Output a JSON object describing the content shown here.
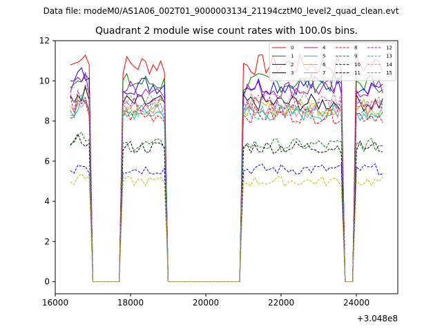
{
  "suptitle": "Data file: modeM0/AS1A06_002T01_9000003134_21194cztM0_level2_quad_clean.evt",
  "chart_data": {
    "type": "line",
    "title": "Quadrant 2 module wise count rates with 100.0s bins.",
    "xlabel": "",
    "ylabel": "",
    "x_offset_label": "+3.048e8",
    "xlim": [
      16000,
      25100
    ],
    "ylim": [
      -0.6,
      12
    ],
    "xticks": [
      16000,
      18000,
      20000,
      22000,
      24000
    ],
    "yticks": [
      0,
      2,
      4,
      6,
      8,
      10,
      12
    ],
    "grid": false,
    "legend": {
      "placement": "top-right",
      "columns": 4
    },
    "segments": [
      [
        16400,
        16900
      ],
      [
        17800,
        18900
      ],
      [
        21000,
        23600
      ],
      [
        24000,
        24700
      ]
    ],
    "segments_unit": "x offset (s), value axis relative to +3.048e8",
    "series": [
      {
        "name": "0",
        "color": "#ff0000",
        "style": "solid",
        "level": 10.8
      },
      {
        "name": "1",
        "color": "#008000",
        "style": "solid",
        "level": 9.9
      },
      {
        "name": "2",
        "color": "#0000ff",
        "style": "solid",
        "level": 9.8
      },
      {
        "name": "3",
        "color": "#000000",
        "style": "solid",
        "level": 8.9
      },
      {
        "name": "4",
        "color": "#bf00bf",
        "style": "solid",
        "level": 9.6
      },
      {
        "name": "5",
        "color": "#00bfbf",
        "style": "solid",
        "level": 8.4
      },
      {
        "name": "6",
        "color": "#bfbf00",
        "style": "solid",
        "level": 8.7
      },
      {
        "name": "7",
        "color": "#f08080",
        "style": "solid",
        "level": 8.6
      },
      {
        "name": "8",
        "color": "#ff0000",
        "style": "dashed",
        "level": 8.3
      },
      {
        "name": "9",
        "color": "#008000",
        "style": "dashed",
        "level": 6.8
      },
      {
        "name": "10",
        "color": "#0000ff",
        "style": "dashed",
        "level": 5.6
      },
      {
        "name": "11",
        "color": "#000000",
        "style": "dashed",
        "level": 6.7
      },
      {
        "name": "12",
        "color": "#bf00bf",
        "style": "dashed",
        "level": 8.8
      },
      {
        "name": "13",
        "color": "#00bfbf",
        "style": "dashed",
        "level": 8.5
      },
      {
        "name": "14",
        "color": "#bfbf00",
        "style": "dashed",
        "level": 5.0
      },
      {
        "name": "15",
        "color": "#a08080",
        "style": "dashed",
        "level": 9.0
      }
    ]
  }
}
